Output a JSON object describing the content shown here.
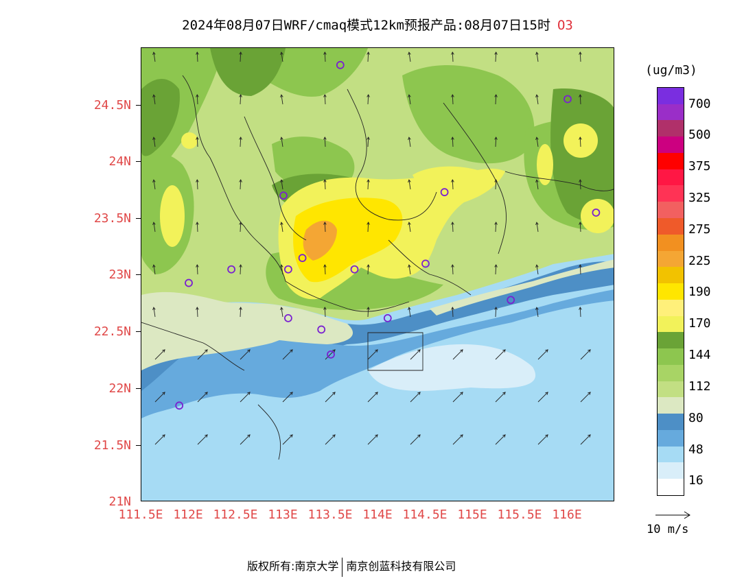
{
  "title": {
    "text": "2024年08月07日WRF/cmaq模式12km预报产品:08月07日15时",
    "species": "O3"
  },
  "map": {
    "y_labels": [
      "24.5N",
      "24N",
      "23.5N",
      "23N",
      "22.5N",
      "22N",
      "21.5N",
      "21N"
    ],
    "x_labels": [
      "111.5E",
      "112E",
      "112.5E",
      "113E",
      "113.5E",
      "114E",
      "114.5E",
      "115E",
      "115.5E",
      "116E"
    ],
    "lat_range": [
      21,
      25
    ],
    "lon_range": [
      111.5,
      116.5
    ],
    "station_markers": [
      {
        "lon": 113.6,
        "lat": 24.85
      },
      {
        "lon": 116.0,
        "lat": 24.55
      },
      {
        "lon": 113.0,
        "lat": 23.7
      },
      {
        "lon": 114.7,
        "lat": 23.73
      },
      {
        "lon": 116.3,
        "lat": 23.55
      },
      {
        "lon": 113.2,
        "lat": 23.15
      },
      {
        "lon": 113.05,
        "lat": 23.05
      },
      {
        "lon": 112.45,
        "lat": 23.05
      },
      {
        "lon": 112.0,
        "lat": 22.93
      },
      {
        "lon": 113.75,
        "lat": 23.05
      },
      {
        "lon": 114.5,
        "lat": 23.1
      },
      {
        "lon": 113.05,
        "lat": 22.62
      },
      {
        "lon": 113.4,
        "lat": 22.52
      },
      {
        "lon": 114.1,
        "lat": 22.62
      },
      {
        "lon": 115.4,
        "lat": 22.78
      },
      {
        "lon": 113.5,
        "lat": 22.3
      },
      {
        "lon": 111.9,
        "lat": 21.85
      }
    ]
  },
  "colorbar": {
    "units": "(ug/m3)",
    "labels": [
      "16",
      "48",
      "80",
      "112",
      "144",
      "170",
      "190",
      "225",
      "275",
      "325",
      "375",
      "500",
      "700"
    ],
    "colors": [
      "#ffffff",
      "#d9eef9",
      "#a6dbf4",
      "#66aadd",
      "#4d8fc6",
      "#dce8c2",
      "#c2df83",
      "#a8d465",
      "#8dc64f",
      "#6aa336",
      "#f2f25a",
      "#fff07a",
      "#ffe600",
      "#f2c200",
      "#f4a634",
      "#f29020",
      "#ef5a2a",
      "#f26060",
      "#ff3355",
      "#ff1744",
      "#ff0000",
      "#cc0080",
      "#b0306a",
      "#9a2ec8",
      "#7a2ee0"
    ]
  },
  "wind_ref": {
    "label": "10 m/s"
  },
  "footer": {
    "copyright": "版权所有:南京大学",
    "company": "南京创蓝科技有限公司"
  },
  "colors": {
    "axis_label": "#e04848",
    "station_marker": "#7a20d0"
  }
}
